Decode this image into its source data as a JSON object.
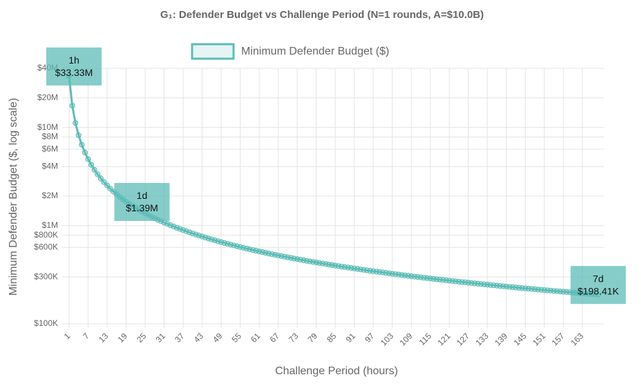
{
  "chart_data": {
    "type": "line",
    "title": "G₁: Defender Budget vs Challenge Period (N=1 rounds, A=$10.0B)",
    "x_label": "Challenge Period (hours)",
    "y_label": "Minimum Defender Budget ($, log scale)",
    "log_y": true,
    "grid": true,
    "legend": "top",
    "xlim": [
      0.5,
      168.5
    ],
    "ylim": [
      100000,
      40000000
    ],
    "xticks": [
      1,
      7,
      13,
      19,
      25,
      31,
      37,
      43,
      49,
      55,
      61,
      67,
      73,
      79,
      85,
      91,
      97,
      103,
      109,
      115,
      121,
      127,
      133,
      139,
      145,
      151,
      157,
      163
    ],
    "yticks": [
      {
        "value": 100000,
        "label": "$100K"
      },
      {
        "value": 300000,
        "label": "$300K"
      },
      {
        "value": 600000,
        "label": "$600K"
      },
      {
        "value": 800000,
        "label": "$800K"
      },
      {
        "value": 1000000,
        "label": "$1M"
      },
      {
        "value": 2000000,
        "label": "$2M"
      },
      {
        "value": 4000000,
        "label": "$4M"
      },
      {
        "value": 6000000,
        "label": "$6M"
      },
      {
        "value": 8000000,
        "label": "$8M"
      },
      {
        "value": 10000000,
        "label": "$10M"
      },
      {
        "value": 20000000,
        "label": "$20M"
      },
      {
        "value": 40000000,
        "label": "$40M"
      }
    ],
    "x": [
      1,
      2,
      3,
      4,
      5,
      6,
      7,
      8,
      9,
      10,
      11,
      12,
      13,
      14,
      15,
      16,
      17,
      18,
      19,
      20,
      21,
      22,
      23,
      24,
      25,
      26,
      27,
      28,
      29,
      30,
      31,
      32,
      33,
      34,
      35,
      36,
      37,
      38,
      39,
      40,
      41,
      42,
      43,
      44,
      45,
      46,
      47,
      48,
      49,
      50,
      51,
      52,
      53,
      54,
      55,
      56,
      57,
      58,
      59,
      60,
      61,
      62,
      63,
      64,
      65,
      66,
      67,
      68,
      69,
      70,
      71,
      72,
      73,
      74,
      75,
      76,
      77,
      78,
      79,
      80,
      81,
      82,
      83,
      84,
      85,
      86,
      87,
      88,
      89,
      90,
      91,
      92,
      93,
      94,
      95,
      96,
      97,
      98,
      99,
      100,
      101,
      102,
      103,
      104,
      105,
      106,
      107,
      108,
      109,
      110,
      111,
      112,
      113,
      114,
      115,
      116,
      117,
      118,
      119,
      120,
      121,
      122,
      123,
      124,
      125,
      126,
      127,
      128,
      129,
      130,
      131,
      132,
      133,
      134,
      135,
      136,
      137,
      138,
      139,
      140,
      141,
      142,
      143,
      144,
      145,
      146,
      147,
      148,
      149,
      150,
      151,
      152,
      153,
      154,
      155,
      156,
      157,
      158,
      159,
      160,
      161,
      162,
      163,
      164,
      165,
      166,
      167,
      168
    ],
    "series": [
      {
        "name": "Minimum Defender Budget ($)",
        "color": "#5dbcb7",
        "values": [
          33333000,
          16667000,
          11111000,
          8333000,
          6667000,
          5556000,
          4762000,
          4167000,
          3704000,
          3333000,
          3030000,
          2778000,
          2564000,
          2381000,
          2222000,
          2083000,
          1961000,
          1852000,
          1754000,
          1667000,
          1587000,
          1515000,
          1449000,
          1389000,
          1333000,
          1282000,
          1235000,
          1190000,
          1149000,
          1111000,
          1075000,
          1042000,
          1010000,
          980400,
          952400,
          925900,
          900900,
          877200,
          854700,
          833300,
          813000,
          793700,
          775200,
          757600,
          740700,
          724600,
          709200,
          694400,
          680300,
          666700,
          653600,
          641000,
          628900,
          617300,
          606100,
          595200,
          584800,
          574700,
          565000,
          555600,
          546400,
          537600,
          529100,
          520800,
          512800,
          505100,
          497500,
          490200,
          483100,
          476200,
          469500,
          463000,
          456600,
          450500,
          444400,
          438600,
          432900,
          427400,
          421900,
          416700,
          411500,
          406500,
          401600,
          396800,
          392200,
          387600,
          383100,
          378800,
          374500,
          370400,
          366300,
          362300,
          358400,
          354600,
          350900,
          347200,
          343600,
          340100,
          336700,
          333300,
          330000,
          326800,
          323600,
          320500,
          317500,
          314500,
          311500,
          308600,
          305800,
          303000,
          300300,
          297600,
          295000,
          292400,
          289900,
          287400,
          284900,
          282500,
          280100,
          277800,
          275500,
          273200,
          271000,
          268800,
          266700,
          264600,
          262500,
          260400,
          258400,
          256400,
          254500,
          252500,
          250600,
          248800,
          246900,
          245100,
          243300,
          241500,
          239800,
          238100,
          236400,
          234700,
          233100,
          231500,
          229900,
          228300,
          226800,
          225200,
          223700,
          222200,
          220800,
          219300,
          217900,
          216500,
          215100,
          213700,
          212300,
          211000,
          209600,
          208300,
          207000,
          205800,
          204500,
          203300,
          202000,
          200800,
          199600,
          198400
        ]
      }
    ],
    "annotations": [
      {
        "x": 1,
        "value": 33330000,
        "text": "1h",
        "value_label": "$33.33M"
      },
      {
        "x": 24,
        "value": 1390000,
        "text": "1d",
        "value_label": "$1.39M"
      },
      {
        "x": 168,
        "value": 198410,
        "text": "7d",
        "value_label": "$198.41K"
      }
    ]
  }
}
